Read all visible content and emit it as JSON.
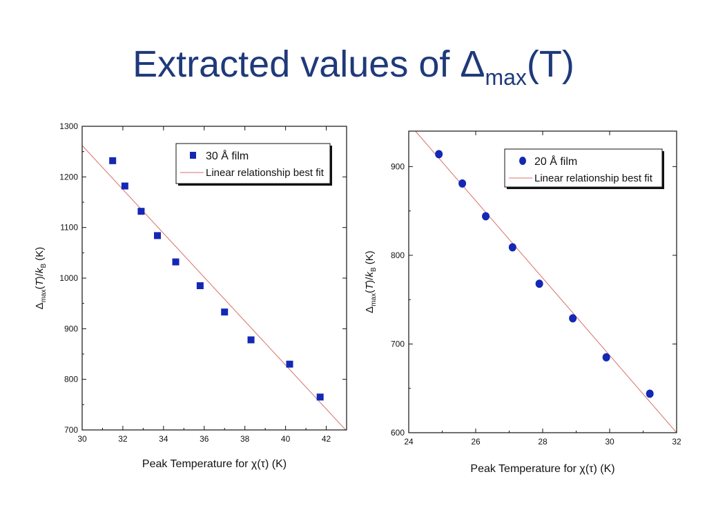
{
  "slide": {
    "title_main": "Extracted values of Δ",
    "title_sub": "max",
    "title_end": "(T)"
  },
  "chart_data": [
    {
      "type": "scatter",
      "xlabel": "Peak Temperature for χ(τ) (K)",
      "ylabel": {
        "delta": "Δ",
        "sub": "max",
        "mid": "(",
        "italic1": "T",
        "mid2": ")/",
        "italic2": "k",
        "sub2": "B",
        "end": " (K)"
      },
      "xlim": [
        30,
        43
      ],
      "ylim": [
        700,
        1300
      ],
      "xticks": [
        "30",
        "32",
        "34",
        "36",
        "38",
        "40",
        "42"
      ],
      "yticks": [
        "700",
        "800",
        "900",
        "1000",
        "1100",
        "1200",
        "1300"
      ],
      "legend": {
        "position": "top-right",
        "series_label": "30 Å film",
        "fit_label": "Linear relationship best fit"
      },
      "marker": "square",
      "color": "#1428b4",
      "fit_color": "#d4706a",
      "series": [
        {
          "name": "30 Å film",
          "x": [
            31.5,
            32.1,
            32.9,
            33.7,
            34.6,
            35.8,
            37.0,
            38.3,
            40.2,
            41.7
          ],
          "y": [
            1232,
            1182,
            1132,
            1084,
            1032,
            985,
            933,
            878,
            830,
            765
          ]
        }
      ],
      "fit_line": {
        "x": [
          30,
          43
        ],
        "y": [
          1262,
          698
        ]
      }
    },
    {
      "type": "scatter",
      "xlabel": "Peak Temperature for χ(τ) (K)",
      "ylabel": {
        "delta": "Δ",
        "sub": "max",
        "mid": "(",
        "italic1": "T",
        "mid2": ")/",
        "italic2": "k",
        "sub2": "B",
        "end": " (K)"
      },
      "xlim": [
        24,
        32
      ],
      "ylim": [
        600,
        940
      ],
      "xticks": [
        "24",
        "26",
        "28",
        "30",
        "32"
      ],
      "yticks": [
        "600",
        "700",
        "800",
        "900"
      ],
      "legend": {
        "position": "top-right",
        "series_label": "20 Å film",
        "fit_label": "Linear relationship best fit"
      },
      "marker": "circle",
      "color": "#1428b4",
      "fit_color": "#d4706a",
      "series": [
        {
          "name": "20 Å film",
          "x": [
            24.9,
            25.6,
            26.3,
            27.1,
            27.9,
            28.9,
            29.9,
            31.2
          ],
          "y": [
            914,
            881,
            844,
            809,
            768,
            729,
            685,
            644
          ]
        }
      ],
      "fit_line": {
        "x": [
          24.2,
          32.0
        ],
        "y": [
          940,
          600
        ]
      }
    }
  ]
}
